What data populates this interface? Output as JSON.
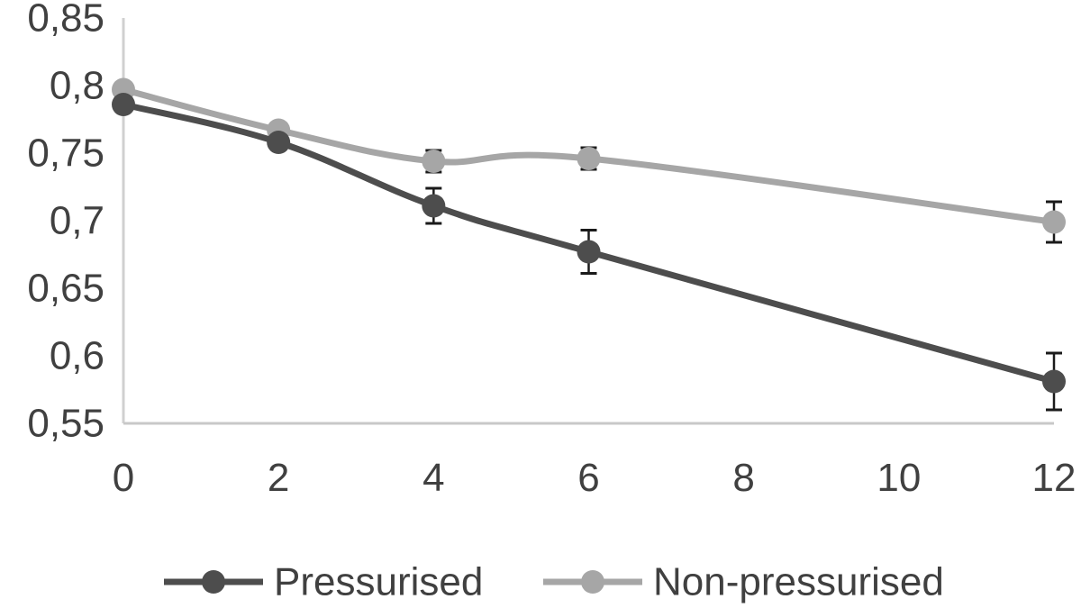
{
  "chart_data": {
    "type": "line",
    "title": "",
    "xlabel": "",
    "ylabel": "",
    "x": [
      0,
      2,
      4,
      6,
      12
    ],
    "xlim": [
      0,
      12
    ],
    "ylim": [
      0.55,
      0.85
    ],
    "x_ticks": [
      0,
      2,
      4,
      6,
      8,
      10,
      12
    ],
    "x_tick_labels": [
      "0",
      "2",
      "4",
      "6",
      "8",
      "10",
      "12"
    ],
    "y_ticks": [
      0.55,
      0.6,
      0.65,
      0.7,
      0.75,
      0.8,
      0.85
    ],
    "y_tick_labels": [
      "0,55",
      "0,6",
      "0,65",
      "0,7",
      "0,75",
      "0,8",
      "0,85"
    ],
    "grid": false,
    "legend_position": "bottom",
    "series": [
      {
        "name": "Pressurised",
        "color": "#4d4d4d",
        "values": [
          0.786,
          0.758,
          0.711,
          0.677,
          0.581
        ],
        "error": [
          0.004,
          0.004,
          0.013,
          0.016,
          0.021
        ]
      },
      {
        "name": "Non-pressurised",
        "color": "#a6a6a6",
        "values": [
          0.797,
          0.767,
          0.744,
          0.746,
          0.699
        ],
        "error": [
          0.003,
          0.003,
          0.008,
          0.008,
          0.015
        ]
      }
    ]
  }
}
